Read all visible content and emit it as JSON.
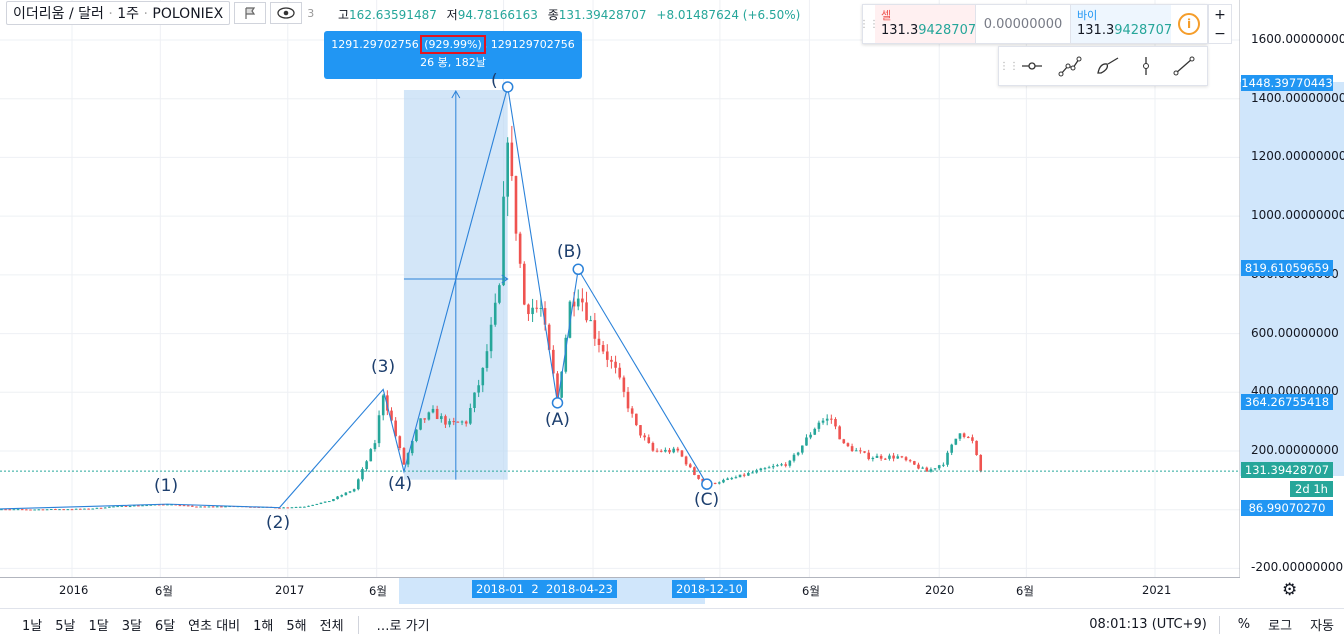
{
  "header": {
    "symbol": "이더리움 / 달러",
    "interval": "1주",
    "exchange": "POLONIEX",
    "ohlc_o_suffix": "3",
    "high_label": "고",
    "high": "162.63591487",
    "low_label": "저",
    "low": "94.78166163",
    "close_label": "종",
    "close": "131.39428707",
    "change": "+8.01487624 (+6.50%)"
  },
  "trade_panel": {
    "sell_label": "셀",
    "sell_price_main": "131.3",
    "sell_price_tail": "9428707",
    "quantity": "0.00000000",
    "buy_label": "바이",
    "buy_price_main": "131.3",
    "buy_price_tail": "9428707",
    "info_icon": "i",
    "zoom_in": "+",
    "zoom_out": "−"
  },
  "measure_tooltip": {
    "diff": "1291.29702756",
    "percent": "(929.99%)",
    "ticks": ", 129129702756",
    "bars_days": "26 봉, 182날"
  },
  "price_axis": {
    "ticks": [
      "1600.00000000",
      "1400.00000000",
      "1200.00000000",
      "1000.00000000",
      "800.00000000",
      "600.00000000",
      "400.00000000",
      "200.00000000",
      "-200.00000000"
    ],
    "labels": {
      "top": "1448.39770443",
      "upper": "819.61059659",
      "lower": "364.26755418",
      "current": "131.39428707",
      "countdown": "2d 1h",
      "bottom": "86.99070270"
    }
  },
  "time_axis": {
    "labels": [
      "2016",
      "6월",
      "2017",
      "6월",
      "6월",
      "2020",
      "6월",
      "2021"
    ],
    "highlight_range_start": "2018-01",
    "highlight_range_sep": "2",
    "highlight_range_end": "2018-04-23",
    "highlight_single": "2018-12-10"
  },
  "waves": [
    "(1)",
    "(2)",
    "(3)",
    "(4)",
    "(",
    "(A)",
    "(B)",
    "(C)"
  ],
  "bottom_bar": {
    "ranges": [
      "1날",
      "5날",
      "1달",
      "3달",
      "6달",
      "연초 대비",
      "1해",
      "5해",
      "전체"
    ],
    "goto": "…로 가기",
    "time": "08:01:13 (UTC+9)",
    "percent": "%",
    "log": "로그",
    "auto": "자동"
  },
  "colors": {
    "up": "#26a69a",
    "down": "#ef5350",
    "accent": "#2196f3",
    "wave_line": "#2b82d9",
    "measure_box": "#bbd8f5"
  },
  "icons": {
    "eye": "eye-icon",
    "settings": "gear-icon",
    "tools": [
      "point-tool-icon",
      "polyline-tool-icon",
      "brush-tool-icon",
      "vertical-line-icon",
      "trend-line-icon"
    ]
  },
  "chart_data": {
    "type": "candlestick",
    "title": "이더리움 / 달러, 1주, POLONIEX",
    "y_range": [
      -200,
      1700
    ],
    "x_range": [
      "2015-08",
      "2021-03"
    ],
    "grid": true,
    "current_price": 131.39428707,
    "series": [
      {
        "name": "price_path",
        "points": [
          [
            "2015-08-10",
            1.2
          ],
          [
            "2015-11-02",
            0.9
          ],
          [
            "2016-02-01",
            3.0
          ],
          [
            "2016-03-14",
            11.0
          ],
          [
            "2016-06-13",
            19.0
          ],
          [
            "2016-08-01",
            10.0
          ],
          [
            "2016-10-10",
            12.0
          ],
          [
            "2016-12-19",
            7.0
          ],
          [
            "2017-01-30",
            10.7
          ],
          [
            "2017-03-13",
            30.0
          ],
          [
            "2017-04-24",
            70.0
          ],
          [
            "2017-05-29",
            230.0
          ],
          [
            "2017-06-12",
            400.0
          ],
          [
            "2017-06-26",
            300.0
          ],
          [
            "2017-07-17",
            155.0
          ],
          [
            "2017-08-14",
            300.0
          ],
          [
            "2017-09-04",
            330.0
          ],
          [
            "2017-10-02",
            290.0
          ],
          [
            "2017-10-30",
            300.0
          ],
          [
            "2017-11-27",
            470.0
          ],
          [
            "2017-12-25",
            750.0
          ],
          [
            "2018-01-08",
            1300.0
          ],
          [
            "2018-01-15",
            1100.0
          ],
          [
            "2018-02-05",
            700.0
          ],
          [
            "2018-03-05",
            680.0
          ],
          [
            "2018-04-02",
            380.0
          ],
          [
            "2018-04-23",
            700.0
          ],
          [
            "2018-05-07",
            750.0
          ],
          [
            "2018-06-04",
            600.0
          ],
          [
            "2018-07-09",
            470.0
          ],
          [
            "2018-08-13",
            280.0
          ],
          [
            "2018-09-10",
            200.0
          ],
          [
            "2018-10-22",
            200.0
          ],
          [
            "2018-11-19",
            120.0
          ],
          [
            "2018-12-10",
            85.0
          ],
          [
            "2019-01-28",
            110.0
          ],
          [
            "2019-03-11",
            135.0
          ],
          [
            "2019-04-29",
            160.0
          ],
          [
            "2019-06-17",
            300.0
          ],
          [
            "2019-07-08",
            310.0
          ],
          [
            "2019-07-29",
            220.0
          ],
          [
            "2019-09-09",
            180.0
          ],
          [
            "2019-10-28",
            180.0
          ],
          [
            "2019-12-16",
            130.0
          ],
          [
            "2020-01-13",
            160.0
          ],
          [
            "2020-02-10",
            270.0
          ],
          [
            "2020-03-02",
            230.0
          ],
          [
            "2020-03-16",
            131.0
          ]
        ]
      }
    ],
    "annotations": {
      "elliott_waves": [
        {
          "label": "(1)",
          "date": "2016-06-13",
          "price": 19.0
        },
        {
          "label": "(2)",
          "date": "2016-12-19",
          "price": 7.0
        },
        {
          "label": "(3)",
          "date": "2017-06-12",
          "price": 410.0
        },
        {
          "label": "(4)",
          "date": "2017-07-17",
          "price": 130.0
        },
        {
          "label": "(",
          "date": "2018-01-08",
          "price": 1440.0
        },
        {
          "label": "(A)",
          "date": "2018-04-02",
          "price": 364.0
        },
        {
          "label": "(B)",
          "date": "2018-05-07",
          "price": 819.0
        },
        {
          "label": "(C)",
          "date": "2018-12-10",
          "price": 87.0
        }
      ],
      "measure": {
        "from_date": "2017-07-17",
        "to_date": "2018-01-08",
        "from_price": 150.0,
        "to_price": 1440.0,
        "label": "1291.29702756 (929.99%) , 129129702756 / 26 봉, 182날"
      }
    }
  }
}
